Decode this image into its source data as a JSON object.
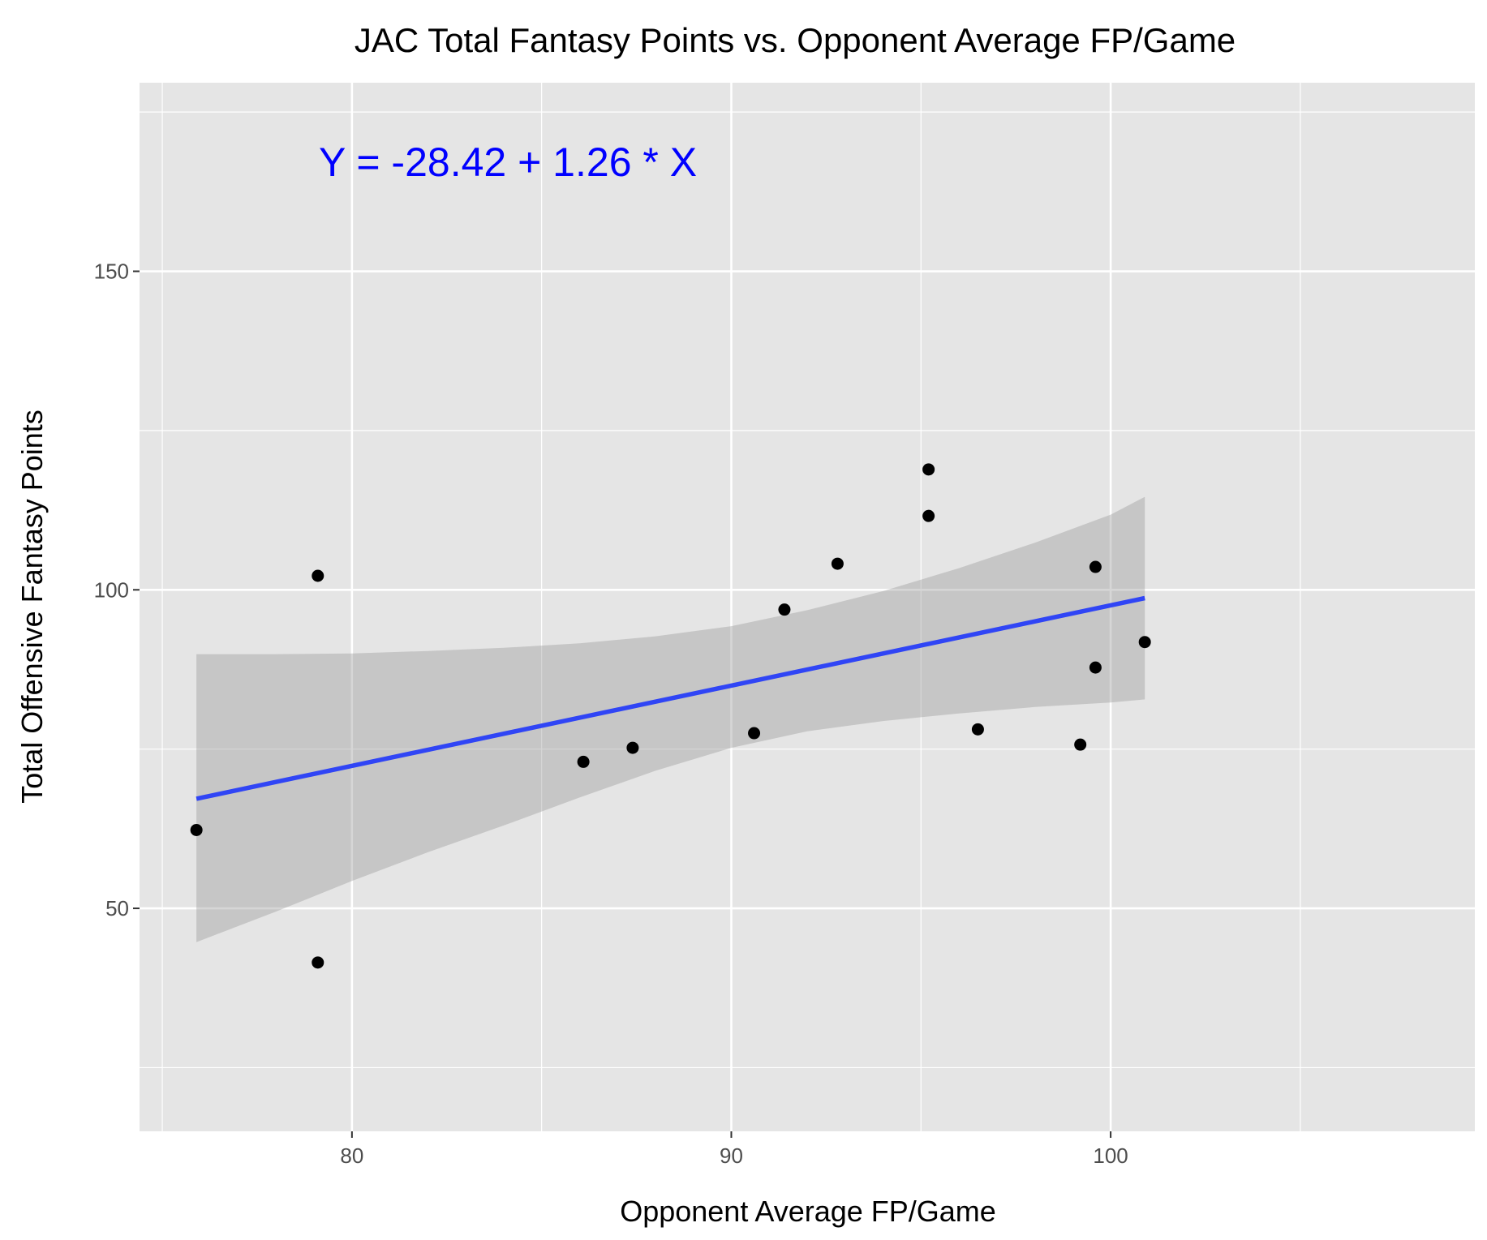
{
  "chart_data": {
    "type": "scatter",
    "title": "JAC Total Fantasy Points vs. Opponent Average FP/Game",
    "xlabel": "Opponent Average FP/Game",
    "ylabel": "Total Offensive Fantasy Points",
    "xlim": [
      74.4,
      109.6
    ],
    "ylim": [
      15.0,
      179.6
    ],
    "x_ticks": [
      80,
      90,
      100
    ],
    "x_tick_labels": [
      "80",
      "90",
      "100"
    ],
    "y_ticks": [
      50,
      100,
      150
    ],
    "y_tick_labels": [
      "50",
      "100",
      "150"
    ],
    "grid": true,
    "annotation": {
      "text": "Y = -28.42 + 1.26 * X",
      "color": "#0000ff"
    },
    "series": [
      {
        "type": "scatter",
        "x": [
          75.9,
          79.1,
          79.1,
          86.1,
          87.4,
          90.6,
          91.4,
          92.8,
          95.2,
          95.2,
          96.5,
          99.2,
          99.6,
          99.6,
          100.9
        ],
        "y": [
          62.3,
          102.2,
          41.5,
          73.0,
          75.2,
          77.5,
          96.9,
          104.1,
          118.9,
          111.6,
          78.1,
          75.7,
          103.6,
          87.8,
          91.8
        ]
      }
    ],
    "fit_line": {
      "x": [
        75.9,
        100.9
      ],
      "y": [
        67.2,
        98.7
      ],
      "color": "#3045f5"
    },
    "confidence_band": {
      "x": [
        75.9,
        78,
        80,
        82,
        84,
        86,
        88,
        90,
        92,
        94,
        96,
        98,
        100,
        100.9
      ],
      "upper": [
        89.9,
        89.9,
        90.0,
        90.4,
        90.9,
        91.6,
        92.7,
        94.3,
        96.8,
        99.8,
        103.4,
        107.4,
        111.8,
        114.6
      ],
      "lower": [
        44.7,
        49.5,
        54.3,
        58.8,
        63.0,
        67.4,
        71.6,
        75.2,
        77.8,
        79.4,
        80.6,
        81.6,
        82.3,
        82.8
      ]
    },
    "colors": {
      "panel": "#e5e5e5",
      "grid": "#ffffff",
      "points": "#000000",
      "band": "#bfbfbf",
      "tick_marks": "#333333"
    }
  }
}
